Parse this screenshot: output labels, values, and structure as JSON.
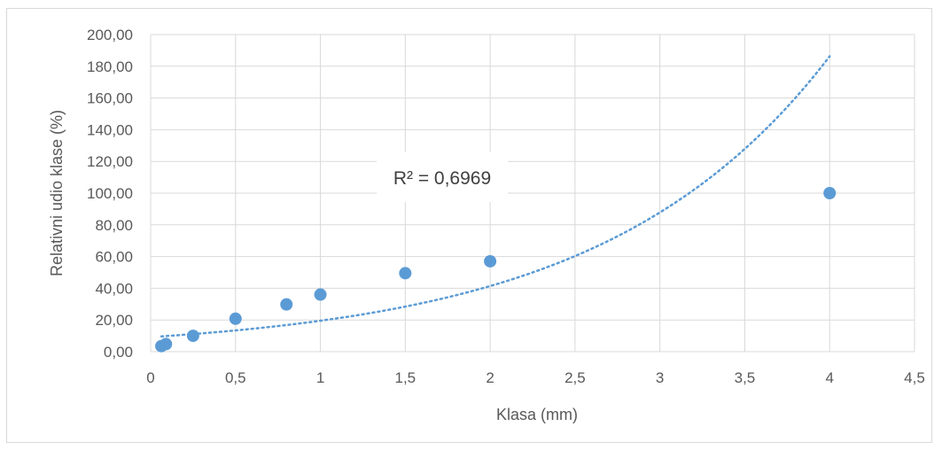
{
  "chart_data": {
    "type": "scatter",
    "xlabel": "Klasa (mm)",
    "ylabel": "Relativni udio klase (%)",
    "xlim": [
      0,
      4.5
    ],
    "ylim": [
      0,
      200
    ],
    "x_ticks": [
      "0",
      "0,5",
      "1",
      "1,5",
      "2",
      "2,5",
      "3",
      "3,5",
      "4",
      "4,5"
    ],
    "y_ticks": [
      "0,00",
      "20,00",
      "40,00",
      "60,00",
      "80,00",
      "100,00",
      "120,00",
      "140,00",
      "160,00",
      "180,00",
      "200,00"
    ],
    "grid": true,
    "series": [
      {
        "points": [
          {
            "x": 0.063,
            "y": 3.5
          },
          {
            "x": 0.09,
            "y": 4.8
          },
          {
            "x": 0.25,
            "y": 10.0
          },
          {
            "x": 0.5,
            "y": 20.8
          },
          {
            "x": 0.8,
            "y": 29.8
          },
          {
            "x": 1.0,
            "y": 36.0
          },
          {
            "x": 1.5,
            "y": 49.5
          },
          {
            "x": 2.0,
            "y": 57.0
          },
          {
            "x": 4.0,
            "y": 100.0
          }
        ],
        "color": "#5b9bd5"
      }
    ],
    "trendline": {
      "type": "exponential",
      "a": 9.2,
      "b": 0.752,
      "x_range": [
        0.063,
        4.0
      ],
      "color": "#5b9bd5",
      "style": "dotted",
      "r2_label": "R² = 0,6969"
    }
  }
}
